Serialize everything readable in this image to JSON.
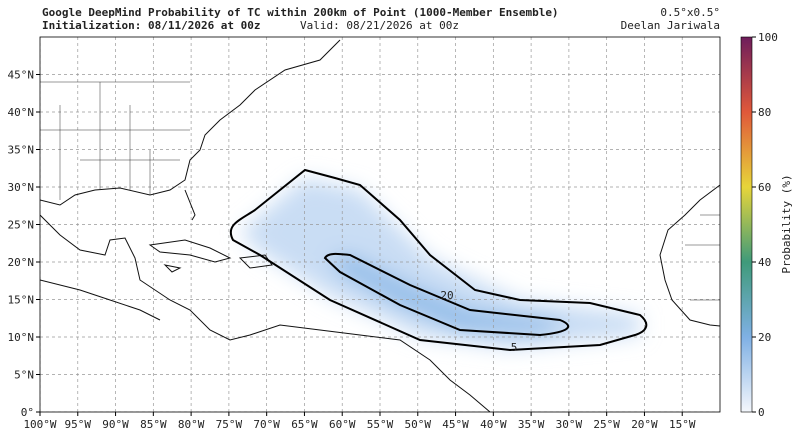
{
  "header": {
    "title": "Google DeepMind Probability of TC within 200km of Point (1000-Member Ensemble)",
    "initialization": "Initialization: 08/11/2026 at 00z",
    "valid": "Valid: 08/21/2026 at 00z",
    "resolution": "0.5°x0.5°",
    "author": "Deelan Jariwala"
  },
  "map": {
    "lon_range": [
      -100,
      -10
    ],
    "lat_range": [
      0,
      50
    ],
    "lon_ticks": [
      {
        "value": -100,
        "label": "100°W"
      },
      {
        "value": -95,
        "label": "95°W"
      },
      {
        "value": -90,
        "label": "90°W"
      },
      {
        "value": -85,
        "label": "85°W"
      },
      {
        "value": -80,
        "label": "80°W"
      },
      {
        "value": -75,
        "label": "75°W"
      },
      {
        "value": -70,
        "label": "70°W"
      },
      {
        "value": -65,
        "label": "65°W"
      },
      {
        "value": -60,
        "label": "60°W"
      },
      {
        "value": -55,
        "label": "55°W"
      },
      {
        "value": -50,
        "label": "50°W"
      },
      {
        "value": -45,
        "label": "45°W"
      },
      {
        "value": -40,
        "label": "40°W"
      },
      {
        "value": -35,
        "label": "35°W"
      },
      {
        "value": -30,
        "label": "30°W"
      },
      {
        "value": -25,
        "label": "25°W"
      },
      {
        "value": -20,
        "label": "20°W"
      },
      {
        "value": -15,
        "label": "15°W"
      }
    ],
    "lat_ticks": [
      {
        "value": 0,
        "label": "0°"
      },
      {
        "value": 5,
        "label": "5°N"
      },
      {
        "value": 10,
        "label": "10°N"
      },
      {
        "value": 15,
        "label": "15°N"
      },
      {
        "value": 20,
        "label": "20°N"
      },
      {
        "value": 25,
        "label": "25°N"
      },
      {
        "value": 30,
        "label": "30°N"
      },
      {
        "value": 35,
        "label": "35°N"
      },
      {
        "value": 40,
        "label": "40°N"
      },
      {
        "value": 45,
        "label": "45°N"
      }
    ],
    "contour_levels": [
      5,
      20
    ]
  },
  "colorbar": {
    "label": "Probability (%)",
    "range": [
      0,
      100
    ],
    "ticks": [
      0,
      20,
      40,
      60,
      80,
      100
    ]
  }
}
